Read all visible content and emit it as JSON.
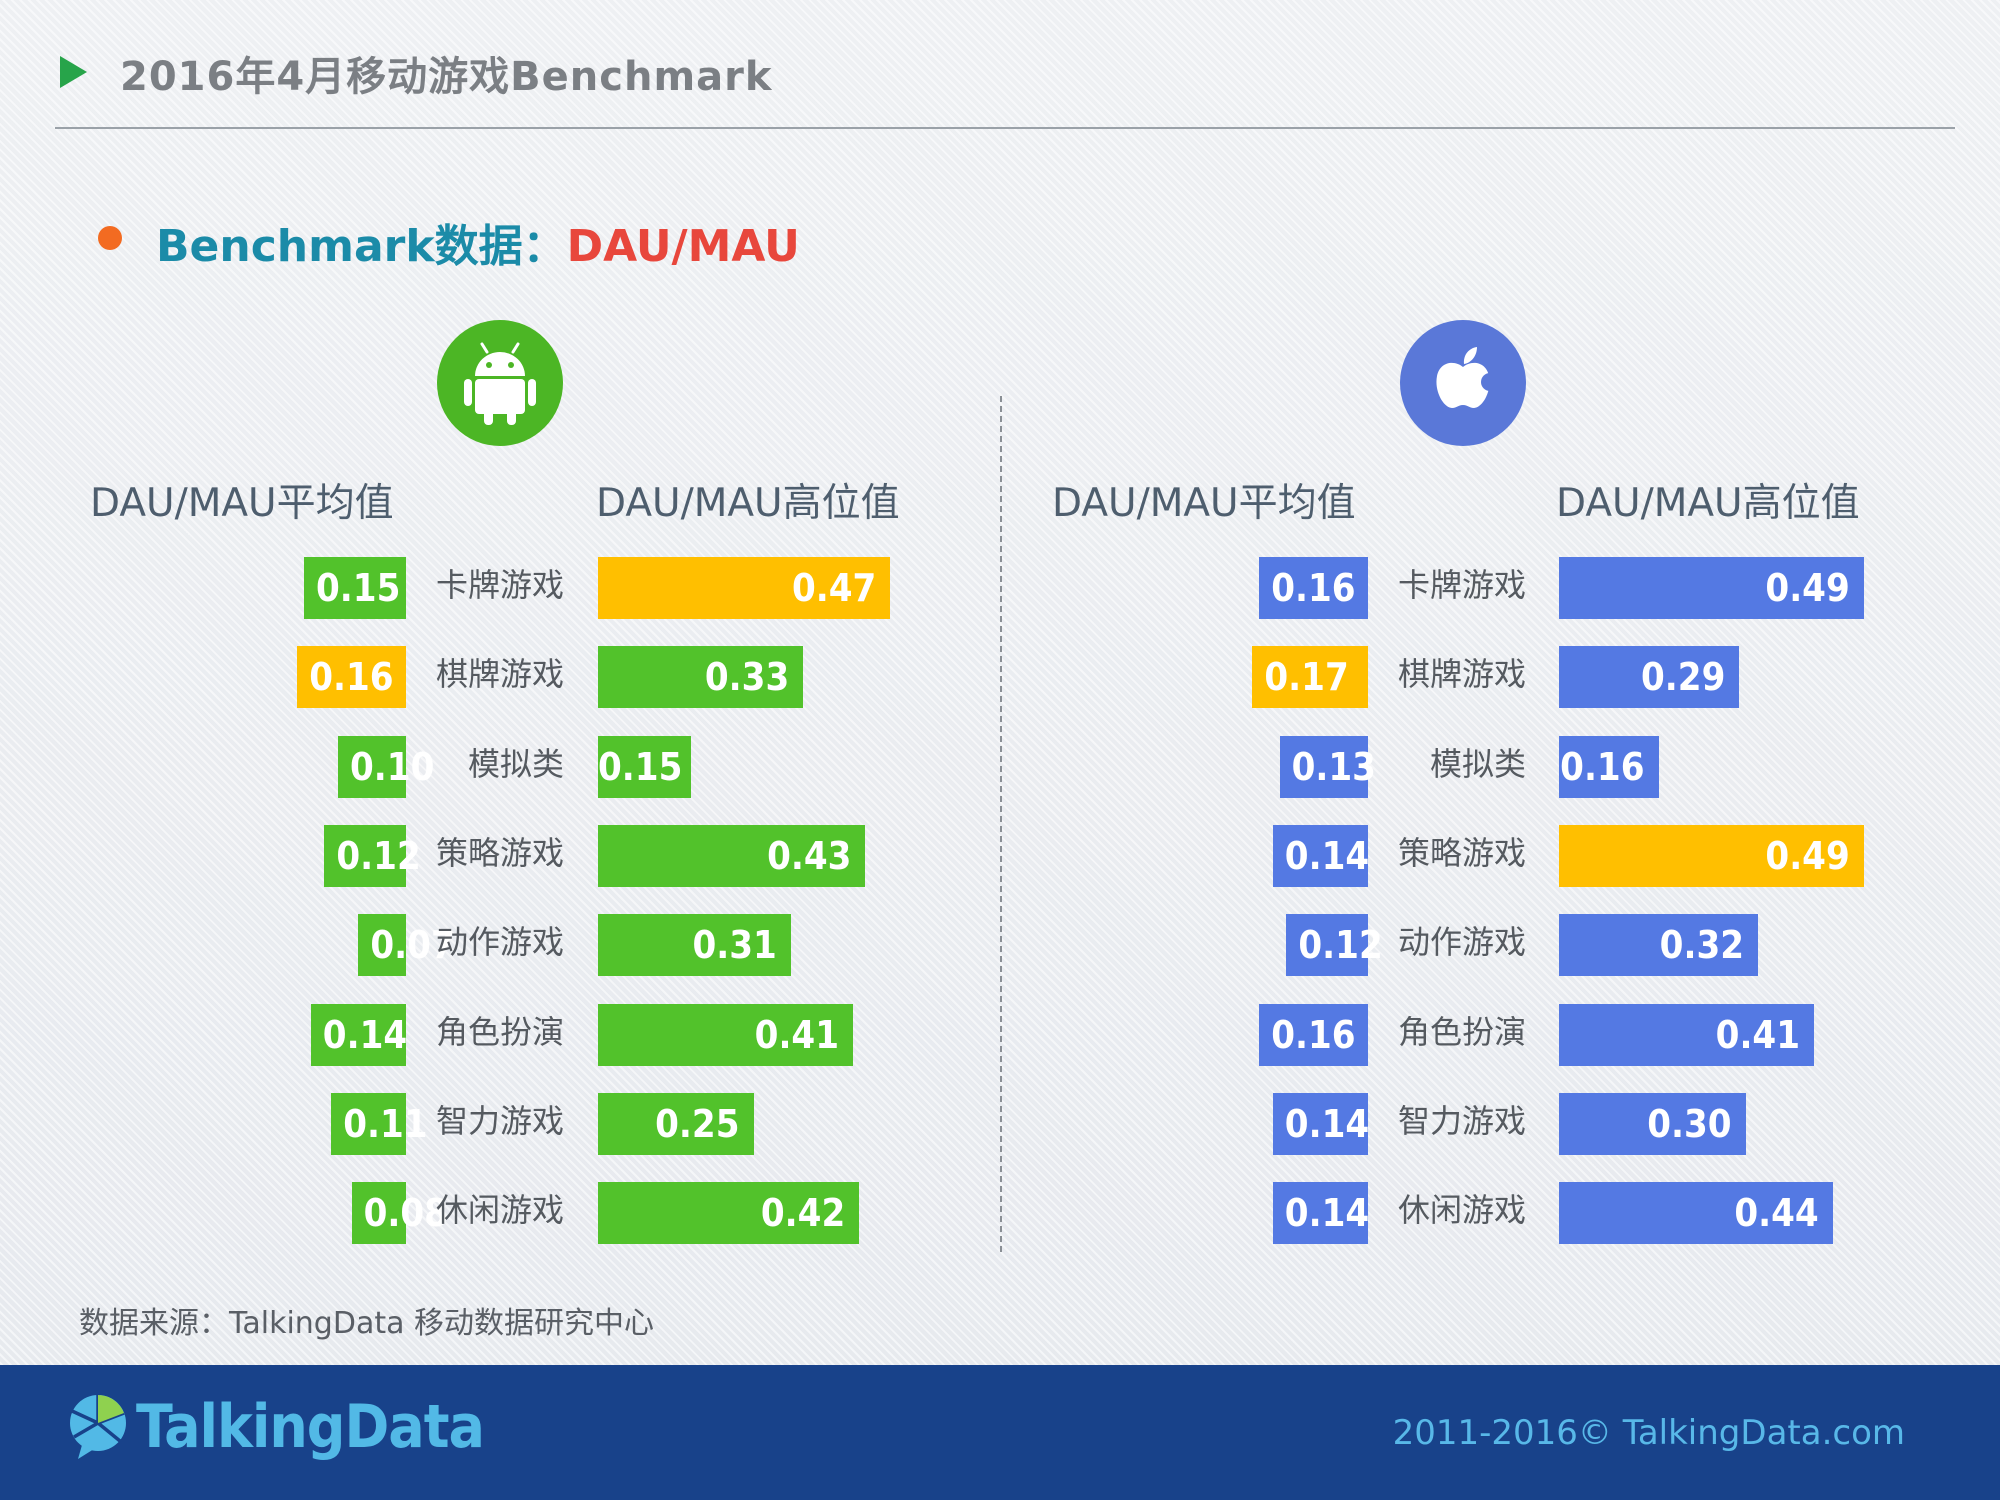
{
  "header": {
    "title": "2016年4月移动游戏Benchmark",
    "subtitle_prefix": "Benchmark数据：",
    "subtitle_metric": "DAU/MAU"
  },
  "icons": {
    "title_marker": "play-triangle-icon",
    "android": "android-robot-icon",
    "ios": "apple-logo-icon"
  },
  "colors": {
    "android_bar": "#52c22b",
    "ios_bar": "#5479e3",
    "highlight_bar": "#ffbf00",
    "subtitle_metric": "#e8473c",
    "footer_bg": "#18428a"
  },
  "columns": {
    "android_avg": "DAU/MAU平均值",
    "android_high": "DAU/MAU高位值",
    "ios_avg": "DAU/MAU平均值",
    "ios_high": "DAU/MAU高位值"
  },
  "chart_data": {
    "type": "bar",
    "categories": [
      "卡牌游戏",
      "棋牌游戏",
      "模拟类",
      "策略游戏",
      "动作游戏",
      "角色扮演",
      "智力游戏",
      "休闲游戏"
    ],
    "series": [
      {
        "platform": "android",
        "name": "DAU/MAU平均值",
        "values": [
          0.15,
          0.16,
          0.1,
          0.12,
          0.07,
          0.14,
          0.11,
          0.08
        ],
        "labels": [
          "0.15",
          "0.16",
          "0.10",
          "0.12",
          "0.07",
          "0.14",
          "0.11",
          "0.08"
        ],
        "highlight_index": 1
      },
      {
        "platform": "android",
        "name": "DAU/MAU高位值",
        "values": [
          0.47,
          0.33,
          0.15,
          0.43,
          0.31,
          0.41,
          0.25,
          0.42
        ],
        "labels": [
          "0.47",
          "0.33",
          "0.15",
          "0.43",
          "0.31",
          "0.41",
          "0.25",
          "0.42"
        ],
        "highlight_index": 0
      },
      {
        "platform": "ios",
        "name": "DAU/MAU平均值",
        "values": [
          0.16,
          0.17,
          0.13,
          0.14,
          0.12,
          0.16,
          0.14,
          0.14
        ],
        "labels": [
          "0.16",
          "0.17",
          "0.13",
          "0.14",
          "0.12",
          "0.16",
          "0.14",
          "0.14"
        ],
        "highlight_index": 1
      },
      {
        "platform": "ios",
        "name": "DAU/MAU高位值",
        "values": [
          0.49,
          0.29,
          0.16,
          0.49,
          0.32,
          0.41,
          0.3,
          0.44
        ],
        "labels": [
          "0.49",
          "0.29",
          "0.16",
          "0.49",
          "0.32",
          "0.41",
          "0.30",
          "0.44"
        ],
        "highlight_index": 3
      }
    ]
  },
  "source": "数据来源：TalkingData 移动数据研究中心",
  "footer": {
    "logo_text": "TalkingData",
    "logo_icon": "talkingdata-pie-bubble-icon",
    "copyright": "2011-2016© TalkingData.com"
  }
}
